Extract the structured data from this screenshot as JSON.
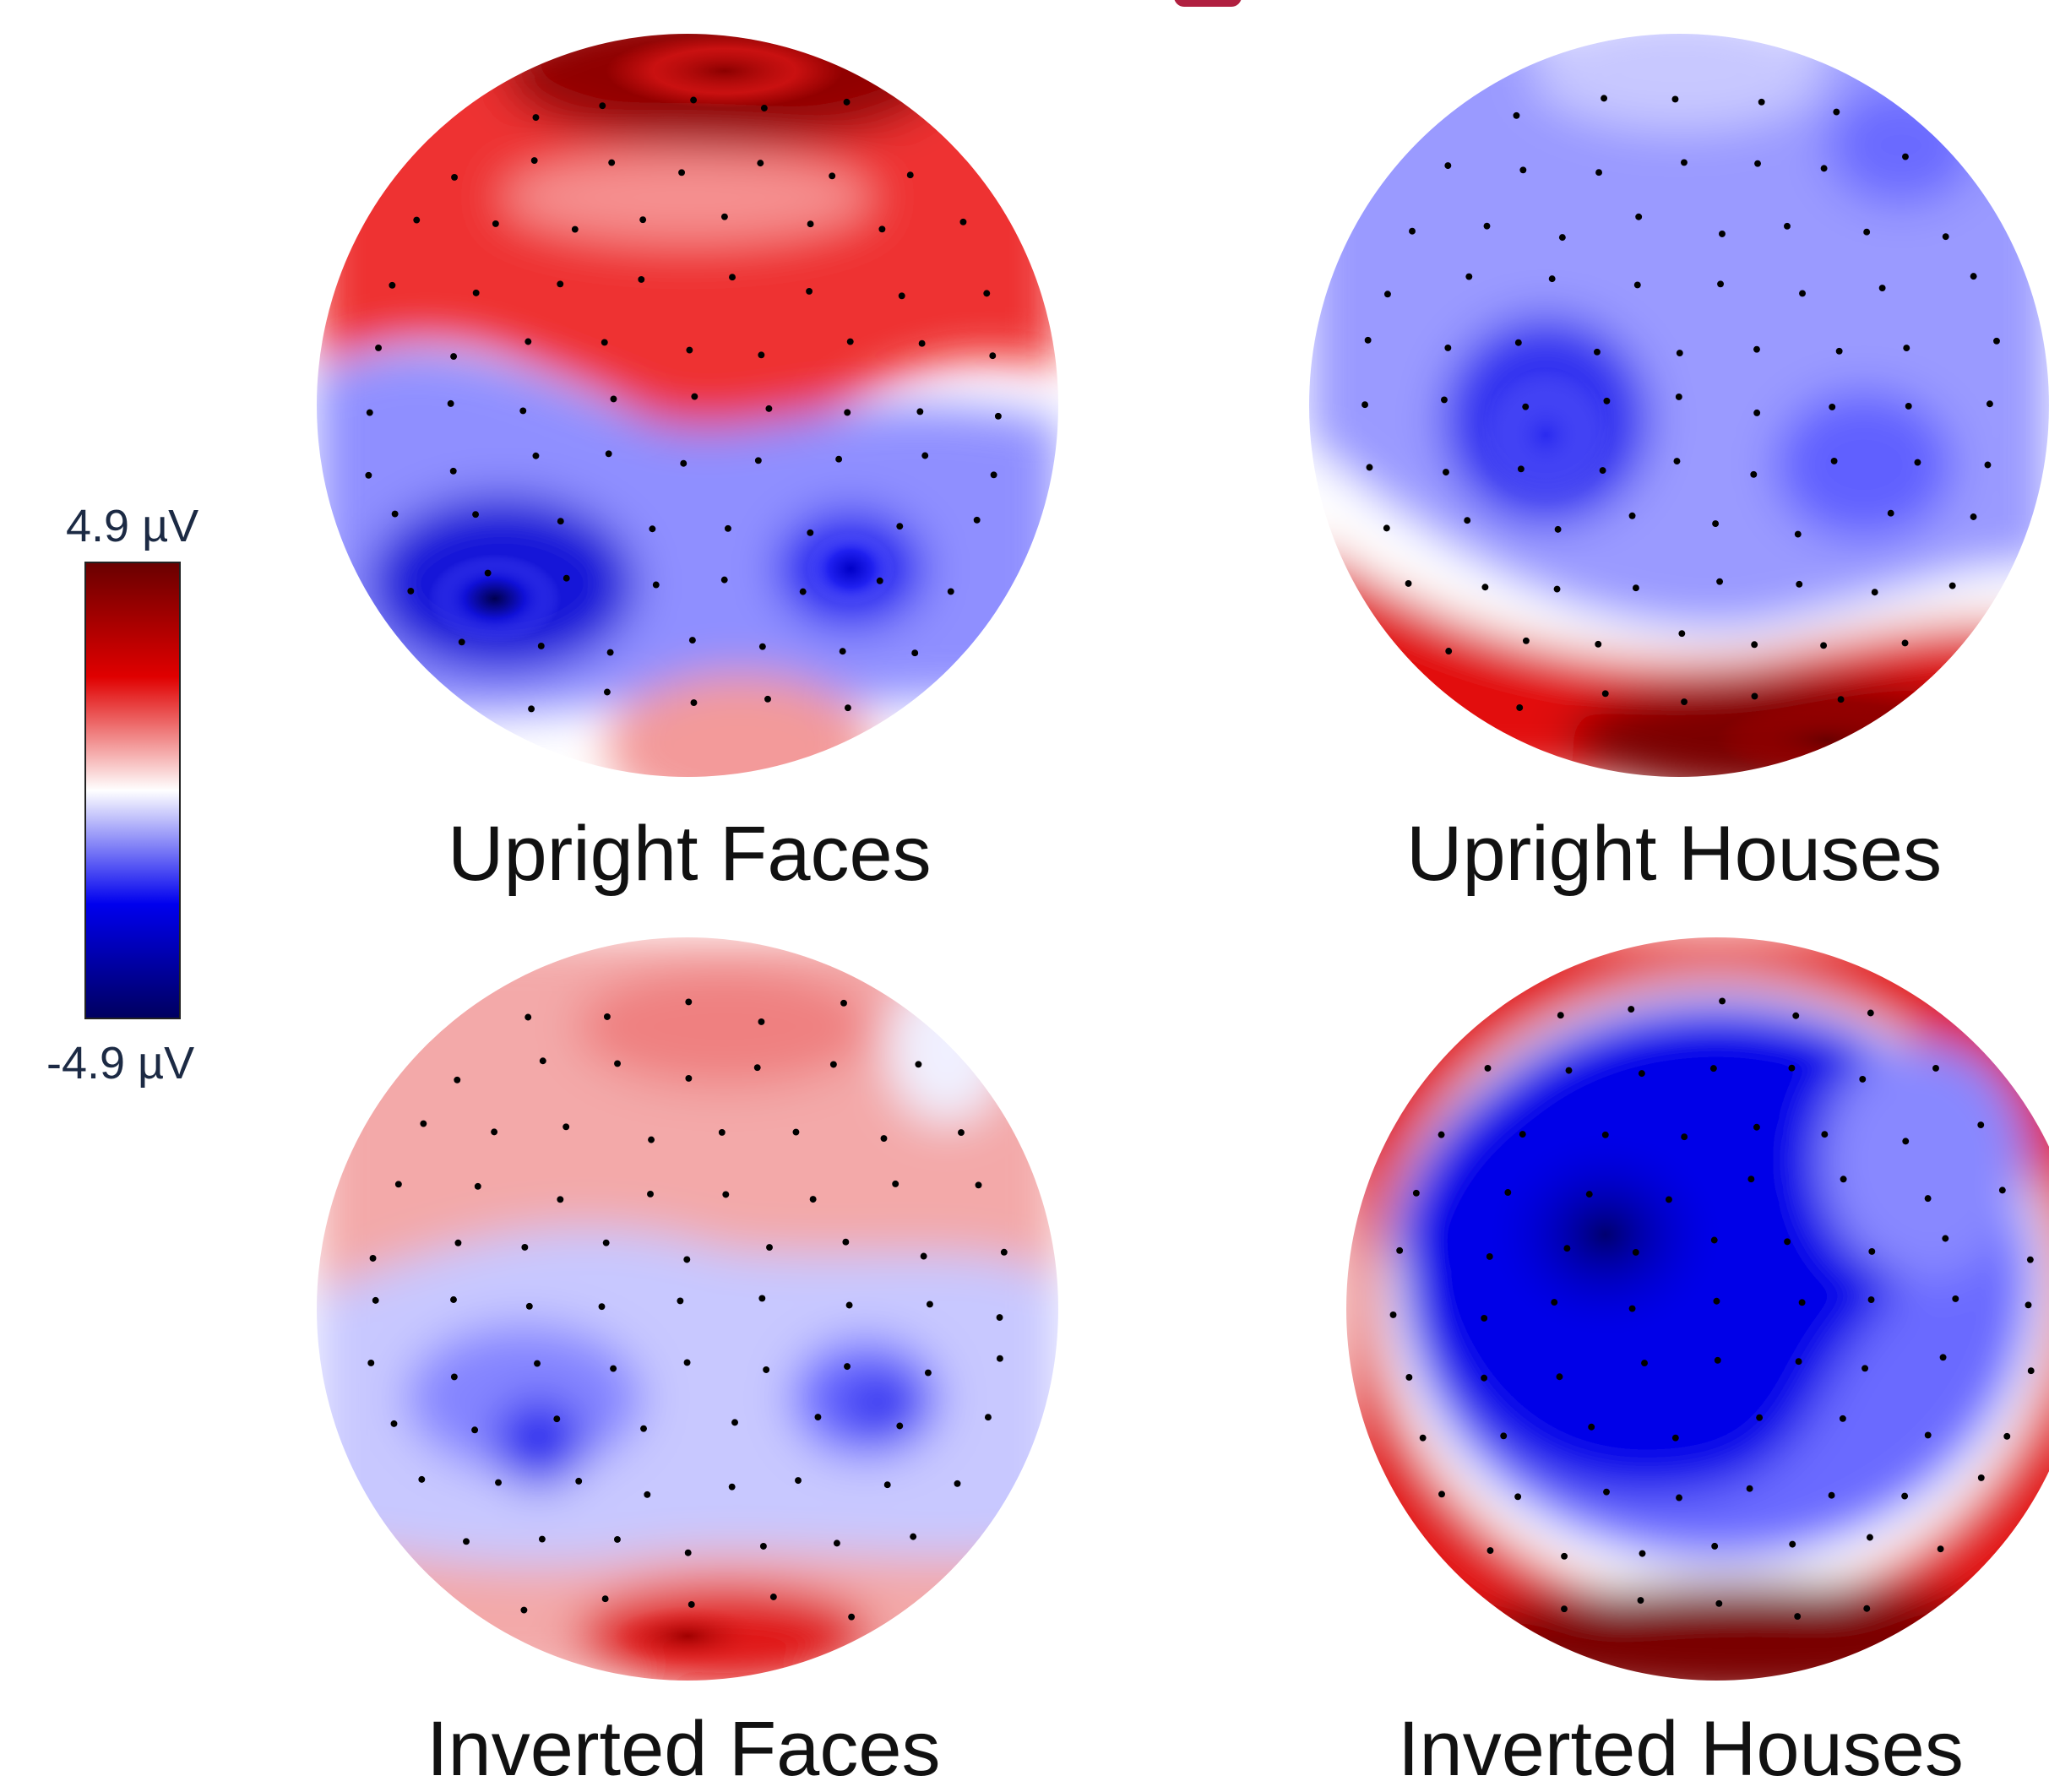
{
  "colorbar": {
    "max_label": "4.9 µV",
    "min_label": "-4.9 µV",
    "colors": [
      "#6a0000",
      "#e00000",
      "#ffffff",
      "#0000ee",
      "#000060"
    ]
  },
  "panels": [
    {
      "caption": "Upright Faces"
    },
    {
      "caption": "Upright Houses"
    },
    {
      "caption": "Inverted Faces"
    },
    {
      "caption": "Inverted Houses"
    }
  ]
}
